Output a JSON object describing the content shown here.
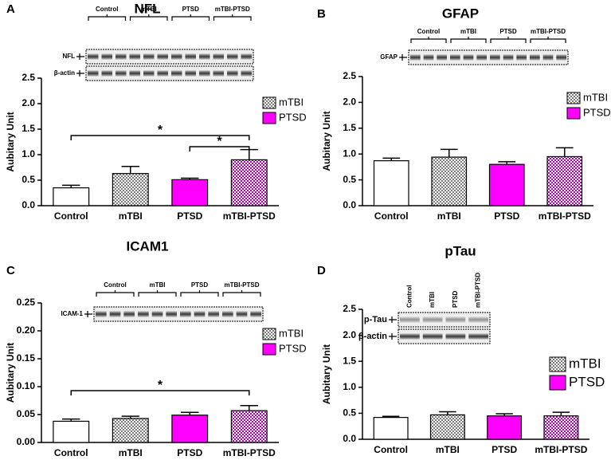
{
  "chart_data": [
    {
      "type": "bar",
      "panel": "A",
      "title": "NFL",
      "ylabel": "Aubitary Unit",
      "categories": [
        "Control",
        "mTBI",
        "PTSD",
        "mTBI-PTSD"
      ],
      "values": [
        0.35,
        0.63,
        0.51,
        0.9
      ],
      "errors": [
        0.05,
        0.14,
        0.03,
        0.2
      ],
      "colors": [
        "#ffffff",
        "#7a7a7a",
        "#ff00ff",
        "#b000b0"
      ],
      "patterned": [
        false,
        true,
        false,
        true
      ],
      "ylim": [
        0,
        2.5
      ],
      "yticks": [
        {
          "value": 0,
          "label": "0.0"
        },
        0.5,
        {
          "value": 1,
          "label": "1.0"
        },
        1.5,
        {
          "value": 2,
          "label": "2.0"
        },
        2.5
      ],
      "legend": [
        {
          "name": "mTBI",
          "color": "#7a7a7a",
          "patterned": true
        },
        {
          "name": "PTSD",
          "color": "#ff00ff",
          "patterned": false
        }
      ],
      "significance": [
        {
          "from": 0,
          "to": 3,
          "label": "*"
        },
        {
          "from": 2,
          "to": 3,
          "label": "*"
        }
      ],
      "blot": {
        "lanes": [
          "Control",
          "mTBI",
          "PTSD",
          "mTBI-PTSD"
        ],
        "rows": [
          "NFL",
          "β-actin"
        ]
      }
    },
    {
      "type": "bar",
      "panel": "B",
      "title": "GFAP",
      "ylabel": "Aubitary Unit",
      "categories": [
        "Control",
        "mTBI",
        "PTSD",
        "mTBI-PTSD"
      ],
      "values": [
        0.87,
        0.94,
        0.8,
        0.95
      ],
      "errors": [
        0.05,
        0.15,
        0.05,
        0.17
      ],
      "colors": [
        "#ffffff",
        "#7a7a7a",
        "#ff00ff",
        "#b000b0"
      ],
      "patterned": [
        false,
        true,
        false,
        true
      ],
      "ylim": [
        0,
        2.5
      ],
      "yticks": [
        {
          "value": 0,
          "label": "0.0"
        },
        0.5,
        {
          "value": 1,
          "label": "1.0"
        },
        1.5,
        {
          "value": 2,
          "label": "2.0"
        },
        2.5
      ],
      "legend": [
        {
          "name": "mTBI",
          "color": "#7a7a7a",
          "patterned": true
        },
        {
          "name": "PTSD",
          "color": "#ff00ff",
          "patterned": false
        }
      ],
      "significance": [],
      "blot": {
        "lanes": [
          "Control",
          "mTBI",
          "PTSD",
          "mTBI-PTSD"
        ],
        "rows": [
          "GFAP"
        ]
      }
    },
    {
      "type": "bar",
      "panel": "C",
      "title": "ICAM1",
      "ylabel": "Aubitary Unit",
      "categories": [
        "Control",
        "mTBI",
        "PTSD",
        "mTBI-PTSD"
      ],
      "values": [
        0.038,
        0.043,
        0.049,
        0.057
      ],
      "errors": [
        0.004,
        0.004,
        0.005,
        0.009
      ],
      "colors": [
        "#ffffff",
        "#7a7a7a",
        "#ff00ff",
        "#b000b0"
      ],
      "patterned": [
        false,
        true,
        false,
        true
      ],
      "ylim": [
        0,
        0.25
      ],
      "yticks": [
        {
          "value": 0,
          "label": "0.00"
        },
        0.05,
        {
          "value": 0.1,
          "label": "0.10"
        },
        0.15,
        {
          "value": 0.2,
          "label": "0.20"
        },
        0.25
      ],
      "legend": [
        {
          "name": "mTBI",
          "color": "#7a7a7a",
          "patterned": true
        },
        {
          "name": "PTSD",
          "color": "#ff00ff",
          "patterned": false
        }
      ],
      "significance": [
        {
          "from": 0,
          "to": 3,
          "label": "*"
        }
      ],
      "blot": {
        "lanes": [
          "Control",
          "mTBI",
          "PTSD",
          "mTBI-PTSD"
        ],
        "rows": [
          "ICAM-1"
        ]
      }
    },
    {
      "type": "bar",
      "panel": "D",
      "title": "pTau",
      "ylabel": "Aubitary Unit",
      "categories": [
        "Control",
        "mTBI",
        "PTSD",
        "mTBI-PTSD"
      ],
      "values": [
        0.42,
        0.47,
        0.45,
        0.45
      ],
      "errors": [
        0.02,
        0.06,
        0.04,
        0.07
      ],
      "colors": [
        "#ffffff",
        "#7a7a7a",
        "#ff00ff",
        "#b000b0"
      ],
      "patterned": [
        false,
        true,
        false,
        true
      ],
      "ylim": [
        0,
        2.5
      ],
      "yticks": [
        {
          "value": 0,
          "label": "0.0"
        },
        0.5,
        {
          "value": 1,
          "label": "1.0"
        },
        1.5,
        {
          "value": 2,
          "label": "2.0"
        },
        2.5
      ],
      "legend": [
        {
          "name": "mTBI",
          "color": "#7a7a7a",
          "patterned": true
        },
        {
          "name": "PTSD",
          "color": "#ff00ff",
          "patterned": false
        }
      ],
      "significance": [],
      "blot": {
        "lanes": [
          "Control",
          "mTBI",
          "PTSD",
          "mTBI-PTSD"
        ],
        "rows": [
          "p-Tau",
          "β-actin"
        ]
      }
    }
  ]
}
